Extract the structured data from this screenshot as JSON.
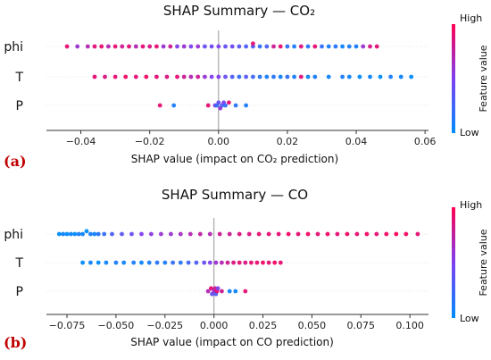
{
  "chart_data": [
    {
      "type": "scatter",
      "panel_label": "(a)",
      "title": "SHAP Summary — CO₂",
      "xlabel": "SHAP value (impact on CO₂ prediction)",
      "xlim": [
        -0.05,
        0.061
      ],
      "xticks": [
        -0.04,
        -0.02,
        0.0,
        0.02,
        0.04,
        0.06
      ],
      "xtick_labels": [
        "−0.04",
        "−0.02",
        "0.00",
        "0.02",
        "0.04",
        "0.06"
      ],
      "features": [
        "phi",
        "T",
        "P"
      ],
      "colorbar": {
        "high": "High",
        "low": "Low",
        "label": "Feature value"
      },
      "series": [
        {
          "name": "phi",
          "points": [
            [
              -0.044,
              0.9
            ],
            [
              -0.041,
              0.6
            ],
            [
              -0.038,
              0.7
            ],
            [
              -0.036,
              0.9
            ],
            [
              -0.034,
              0.9
            ],
            [
              -0.032,
              0.7
            ],
            [
              -0.03,
              0.9
            ],
            [
              -0.028,
              0.8
            ],
            [
              -0.026,
              0.9
            ],
            [
              -0.024,
              0.7
            ],
            [
              -0.022,
              0.9
            ],
            [
              -0.02,
              0.85
            ],
            [
              -0.018,
              0.9
            ],
            [
              -0.016,
              0.6
            ],
            [
              -0.014,
              0.8
            ],
            [
              -0.012,
              0.5
            ],
            [
              -0.01,
              0.6
            ],
            [
              -0.008,
              0.5
            ],
            [
              -0.006,
              0.6
            ],
            [
              -0.004,
              0.4
            ],
            [
              -0.002,
              0.45
            ],
            [
              0.0,
              0.5
            ],
            [
              0.002,
              0.4
            ],
            [
              0.004,
              0.45
            ],
            [
              0.006,
              0.35
            ],
            [
              0.008,
              0.3
            ],
            [
              0.01,
              0.3
            ],
            [
              0.012,
              0.2
            ],
            [
              0.01,
              0.9
            ],
            [
              0.014,
              0.3
            ],
            [
              0.016,
              0.8
            ],
            [
              0.018,
              0.9
            ],
            [
              0.02,
              0.2
            ],
            [
              0.022,
              0.1
            ],
            [
              0.024,
              0.85
            ],
            [
              0.026,
              0.15
            ],
            [
              0.028,
              0.9
            ],
            [
              0.03,
              0.2
            ],
            [
              0.032,
              0.1
            ],
            [
              0.034,
              0.15
            ],
            [
              0.036,
              0.05
            ],
            [
              0.038,
              0.1
            ],
            [
              0.04,
              0.1
            ],
            [
              0.042,
              0.6
            ],
            [
              0.044,
              0.85
            ],
            [
              0.046,
              0.9
            ]
          ]
        },
        {
          "name": "T",
          "points": [
            [
              -0.036,
              0.9
            ],
            [
              -0.033,
              0.85
            ],
            [
              -0.03,
              0.9
            ],
            [
              -0.027,
              0.95
            ],
            [
              -0.024,
              0.9
            ],
            [
              -0.021,
              0.95
            ],
            [
              -0.018,
              0.9
            ],
            [
              -0.015,
              0.85
            ],
            [
              -0.012,
              0.9
            ],
            [
              -0.01,
              0.8
            ],
            [
              -0.008,
              0.7
            ],
            [
              -0.006,
              0.8
            ],
            [
              -0.004,
              0.6
            ],
            [
              -0.002,
              0.5
            ],
            [
              0.0,
              0.5
            ],
            [
              0.002,
              0.4
            ],
            [
              0.004,
              0.3
            ],
            [
              0.006,
              0.2
            ],
            [
              0.008,
              0.35
            ],
            [
              0.01,
              0.25
            ],
            [
              0.012,
              0.15
            ],
            [
              0.014,
              0.1
            ],
            [
              0.016,
              0.15
            ],
            [
              0.018,
              0.05
            ],
            [
              0.02,
              0.2
            ],
            [
              0.022,
              0.1
            ],
            [
              0.024,
              0.85
            ],
            [
              0.026,
              0.05
            ],
            [
              0.028,
              0.1
            ],
            [
              0.032,
              0.05
            ],
            [
              0.036,
              0.1
            ],
            [
              0.038,
              0.05
            ],
            [
              0.041,
              0.0
            ],
            [
              0.044,
              0.05
            ],
            [
              0.047,
              0.0
            ],
            [
              0.05,
              0.1
            ],
            [
              0.053,
              0.05
            ],
            [
              0.056,
              0.0
            ]
          ]
        },
        {
          "name": "P",
          "points": [
            [
              -0.017,
              0.9
            ],
            [
              -0.013,
              0.1
            ],
            [
              -0.003,
              0.9
            ],
            [
              -0.001,
              0.5
            ],
            [
              -0.0005,
              0.2
            ],
            [
              0.0,
              0.4
            ],
            [
              0.0005,
              0.6
            ],
            [
              0.001,
              0.3
            ],
            [
              0.0015,
              0.5
            ],
            [
              0.002,
              0.2
            ],
            [
              0.003,
              0.9
            ],
            [
              0.005,
              0.15
            ],
            [
              0.008,
              0.1
            ]
          ]
        }
      ]
    },
    {
      "type": "scatter",
      "panel_label": "(b)",
      "title": "SHAP Summary — CO",
      "xlabel": "SHAP value (impact on CO prediction)",
      "xlim": [
        -0.0855,
        0.1095
      ],
      "xticks": [
        -0.075,
        -0.05,
        -0.025,
        0.0,
        0.025,
        0.05,
        0.075,
        0.1
      ],
      "xtick_labels": [
        "−0.075",
        "−0.050",
        "−0.025",
        "0.000",
        "0.025",
        "0.050",
        "0.075",
        "0.100"
      ],
      "features": [
        "phi",
        "T",
        "P"
      ],
      "colorbar": {
        "high": "High",
        "low": "Low",
        "label": "Feature value"
      },
      "series": [
        {
          "name": "phi",
          "points": [
            [
              -0.079,
              0.0
            ],
            [
              -0.077,
              0.05
            ],
            [
              -0.075,
              0.0
            ],
            [
              -0.073,
              0.05
            ],
            [
              -0.071,
              0.0
            ],
            [
              -0.069,
              0.1
            ],
            [
              -0.067,
              0.05
            ],
            [
              -0.065,
              0.0
            ],
            [
              -0.063,
              0.1
            ],
            [
              -0.061,
              0.05
            ],
            [
              -0.059,
              0.15
            ],
            [
              -0.056,
              0.2
            ],
            [
              -0.052,
              0.3
            ],
            [
              -0.047,
              0.35
            ],
            [
              -0.042,
              0.4
            ],
            [
              -0.037,
              0.5
            ],
            [
              -0.032,
              0.55
            ],
            [
              -0.027,
              0.6
            ],
            [
              -0.022,
              0.6
            ],
            [
              -0.017,
              0.65
            ],
            [
              -0.012,
              0.7
            ],
            [
              -0.007,
              0.75
            ],
            [
              -0.002,
              0.7
            ],
            [
              0.003,
              0.8
            ],
            [
              0.008,
              0.8
            ],
            [
              0.013,
              0.85
            ],
            [
              0.018,
              0.85
            ],
            [
              0.023,
              0.9
            ],
            [
              0.028,
              0.9
            ],
            [
              0.033,
              0.9
            ],
            [
              0.038,
              0.95
            ],
            [
              0.043,
              0.9
            ],
            [
              0.048,
              0.95
            ],
            [
              0.053,
              0.9
            ],
            [
              0.058,
              0.95
            ],
            [
              0.063,
              0.9
            ],
            [
              0.068,
              0.95
            ],
            [
              0.073,
              0.9
            ],
            [
              0.078,
              0.95
            ],
            [
              0.083,
              0.9
            ],
            [
              0.088,
              0.95
            ],
            [
              0.093,
              1.0
            ],
            [
              0.098,
              0.95
            ],
            [
              0.104,
              0.9
            ]
          ]
        },
        {
          "name": "T",
          "points": [
            [
              -0.067,
              0.0
            ],
            [
              -0.063,
              0.05
            ],
            [
              -0.059,
              0.0
            ],
            [
              -0.055,
              0.05
            ],
            [
              -0.05,
              0.1
            ],
            [
              -0.046,
              0.05
            ],
            [
              -0.041,
              0.1
            ],
            [
              -0.037,
              0.05
            ],
            [
              -0.033,
              0.1
            ],
            [
              -0.029,
              0.15
            ],
            [
              -0.025,
              0.1
            ],
            [
              -0.021,
              0.2
            ],
            [
              -0.017,
              0.15
            ],
            [
              -0.013,
              0.25
            ],
            [
              -0.009,
              0.3
            ],
            [
              -0.005,
              0.4
            ],
            [
              -0.002,
              0.5
            ],
            [
              0.001,
              0.6
            ],
            [
              0.004,
              0.7
            ],
            [
              0.007,
              0.8
            ],
            [
              0.01,
              0.85
            ],
            [
              0.013,
              0.9
            ],
            [
              0.016,
              0.85
            ],
            [
              0.019,
              0.9
            ],
            [
              0.022,
              0.9
            ],
            [
              0.025,
              0.95
            ],
            [
              0.028,
              0.9
            ],
            [
              0.031,
              0.95
            ],
            [
              0.034,
              0.9
            ]
          ]
        },
        {
          "name": "P",
          "points": [
            [
              -0.003,
              0.7
            ],
            [
              -0.0015,
              0.9
            ],
            [
              -0.001,
              0.4
            ],
            [
              0.0,
              0.6
            ],
            [
              0.0005,
              0.8
            ],
            [
              0.001,
              0.3
            ],
            [
              0.0015,
              0.9
            ],
            [
              0.002,
              0.5
            ],
            [
              0.004,
              0.8
            ],
            [
              0.008,
              0.05
            ],
            [
              0.011,
              0.05
            ],
            [
              0.016,
              0.9
            ]
          ]
        }
      ]
    }
  ]
}
